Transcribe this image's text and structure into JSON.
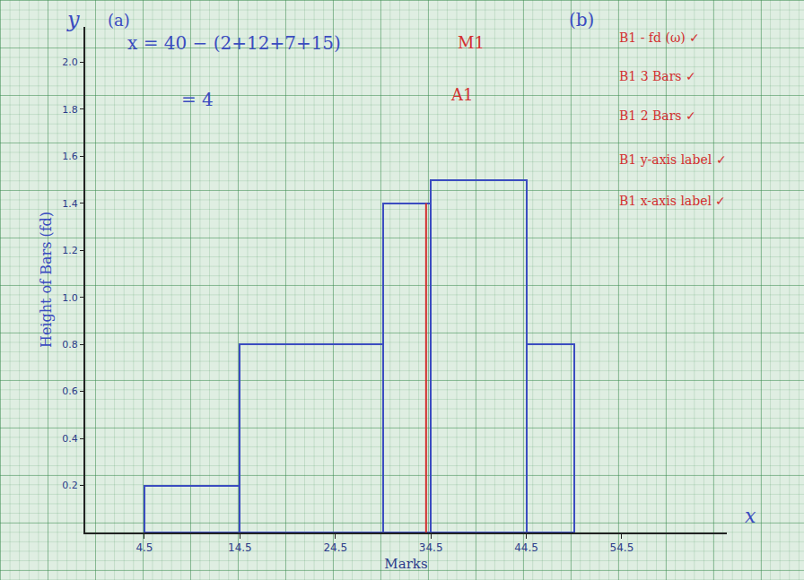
{
  "chart_data": {
    "type": "histogram",
    "x_label": "Marks",
    "y_label": "Height of Bars (fd)",
    "bins": [
      4.5,
      14.5,
      29.5,
      34.5,
      44.5,
      49.5
    ],
    "values": [
      0.2,
      0.8,
      1.4,
      1.5,
      0.8
    ],
    "color": "#3b4cc0",
    "xlim": [
      -1.7,
      65.5
    ],
    "xticks": [
      4.5,
      14.5,
      24.5,
      34.5,
      44.5,
      54.5
    ],
    "ylim": [
      0,
      2.15
    ],
    "yticks": [
      0.2,
      0.4,
      0.6,
      0.8,
      {
        "value": 1,
        "label": "1.0"
      },
      1.2,
      1.4,
      1.6,
      1.8,
      {
        "value": 2,
        "label": "2.0"
      }
    ],
    "vertical_line": {
      "x": 34,
      "y0": 0,
      "y1": 1.4,
      "color": "#d32f2f"
    },
    "annotations": [
      {
        "text": "y",
        "color": "#3b4cc0"
      },
      {
        "text": "(a)",
        "color": "#3b4cc0"
      },
      {
        "text": "x = 40 − (2+12+7+15)",
        "color": "#3b4cc0"
      },
      {
        "text": "M1",
        "color": "#d32f2f"
      },
      {
        "text": "= 4",
        "color": "#3b4cc0"
      },
      {
        "text": "A1",
        "color": "#d32f2f"
      },
      {
        "text": "(b)",
        "color": "#3b4cc0"
      },
      {
        "text": "B1 - fd (ω) ✓",
        "color": "#d32f2f"
      },
      {
        "text": "B1 3 Bars ✓",
        "color": "#d32f2f"
      },
      {
        "text": "B1 2 Bars ✓",
        "color": "#d32f2f"
      },
      {
        "text": "B1 y-axis label ✓",
        "color": "#d32f2f"
      },
      {
        "text": "B1 x-axis label ✓",
        "color": "#d32f2f"
      },
      {
        "text": "x",
        "color": "#3b4cc0"
      }
    ]
  }
}
